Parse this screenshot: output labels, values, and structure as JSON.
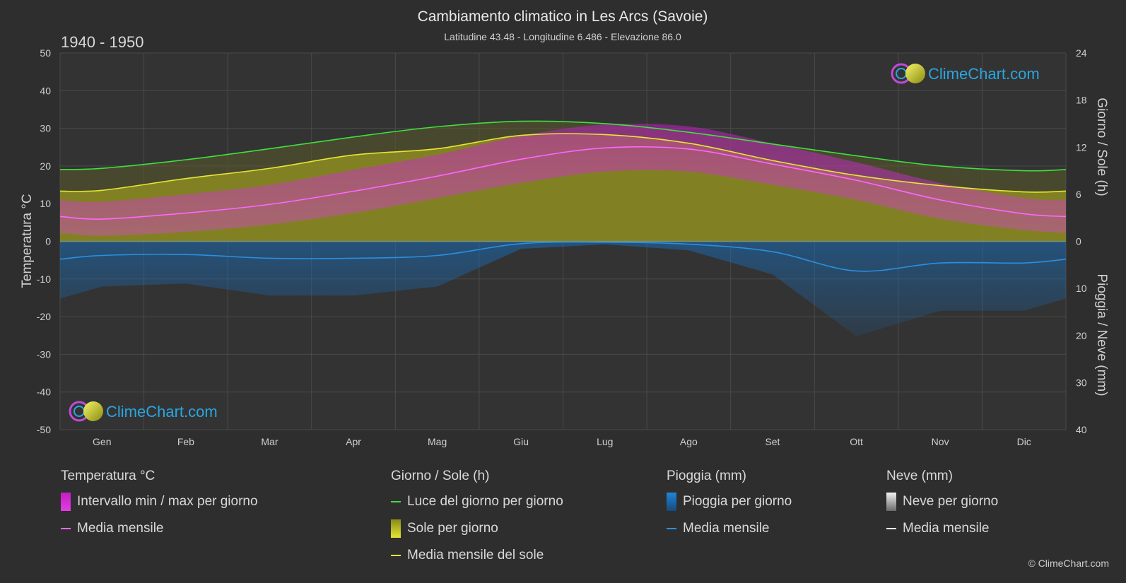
{
  "header": {
    "title": "Cambiamento climatico in Les Arcs (Savoie)",
    "subtitle": "Latitudine 43.48 - Longitudine 6.486 - Elevazione 86.0",
    "period": "1940 - 1950"
  },
  "logo": {
    "text": "ClimeChart.com"
  },
  "copyright": "© ClimeChart.com",
  "axes": {
    "left_label": "Temperatura °C",
    "right_top_label": "Giorno / Sole (h)",
    "right_bottom_label": "Pioggia / Neve (mm)",
    "left_ticks": [
      50,
      40,
      30,
      20,
      10,
      0,
      -10,
      -20,
      -30,
      -40,
      -50
    ],
    "right_top_ticks": [
      24,
      18,
      12,
      6,
      0
    ],
    "right_bottom_ticks": [
      10,
      20,
      30,
      40
    ]
  },
  "chart_data": {
    "type": "line",
    "categories": [
      "Gen",
      "Feb",
      "Mar",
      "Apr",
      "Mag",
      "Giu",
      "Lug",
      "Ago",
      "Set",
      "Ott",
      "Nov",
      "Dic"
    ],
    "ylim_temperature": [
      -50,
      50
    ],
    "ylim_hours": [
      0,
      24
    ],
    "ylim_precip": [
      0,
      40
    ],
    "series": [
      {
        "name": "Luce del giorno per giorno",
        "axis": "hours",
        "color": "#3ee03e",
        "values": [
          9.3,
          10.4,
          11.8,
          13.3,
          14.6,
          15.3,
          15.0,
          13.9,
          12.4,
          10.9,
          9.6,
          9.0
        ]
      },
      {
        "name": "Media mensile del sole",
        "axis": "hours",
        "color": "#e6e633",
        "values": [
          6.5,
          8.0,
          9.3,
          11.0,
          11.8,
          13.5,
          13.6,
          12.5,
          10.3,
          8.4,
          7.1,
          6.3
        ]
      },
      {
        "name": "Media mensile temperatura",
        "axis": "temperature",
        "color": "#ff66ff",
        "values": [
          5.9,
          7.5,
          9.8,
          13.3,
          17.3,
          21.8,
          24.8,
          24.5,
          20.5,
          16.2,
          11.0,
          7.3
        ]
      },
      {
        "name": "Media mensile pioggia",
        "axis": "precip",
        "color": "#2a8fe0",
        "values": [
          3.0,
          2.8,
          3.6,
          3.6,
          3.0,
          0.5,
          0.2,
          0.6,
          2.2,
          6.3,
          4.6,
          4.6
        ]
      },
      {
        "name": "Media mensile neve",
        "axis": "precip",
        "color": "#ffffff",
        "values": [
          0,
          0,
          0,
          0,
          0,
          0,
          0,
          0,
          0,
          0,
          0,
          0
        ]
      }
    ],
    "temp_min_daily_avg": [
      1.5,
      2.5,
      4.5,
      7.5,
      11.5,
      15.5,
      18.5,
      18.5,
      15.0,
      11.0,
      6.0,
      3.0
    ],
    "temp_max_daily_avg": [
      10.5,
      12.5,
      15.0,
      19.0,
      23.0,
      28.0,
      31.0,
      30.5,
      26.0,
      21.0,
      15.5,
      11.5
    ],
    "grid": true
  },
  "legend": {
    "groups": [
      {
        "title": "Temperatura °C",
        "items": [
          {
            "label": "Intervallo min / max per giorno",
            "kind": "box",
            "color": "#e020e0"
          },
          {
            "label": "Media mensile",
            "kind": "line",
            "color": "#ff66ff"
          }
        ]
      },
      {
        "title": "Giorno / Sole (h)",
        "items": [
          {
            "label": "Luce del giorno per giorno",
            "kind": "line",
            "color": "#3ee03e"
          },
          {
            "label": "Sole per giorno",
            "kind": "box",
            "color": "#d8d820"
          },
          {
            "label": "Media mensile del sole",
            "kind": "line",
            "color": "#e6e633"
          }
        ]
      },
      {
        "title": "Pioggia (mm)",
        "items": [
          {
            "label": "Pioggia per giorno",
            "kind": "box",
            "color": "#1f86d8"
          },
          {
            "label": "Media mensile",
            "kind": "line",
            "color": "#2a8fe0"
          }
        ]
      },
      {
        "title": "Neve (mm)",
        "items": [
          {
            "label": "Neve per giorno",
            "kind": "box",
            "color": "#e8e8e8"
          },
          {
            "label": "Media mensile",
            "kind": "line",
            "color": "#ffffff"
          }
        ]
      }
    ]
  }
}
